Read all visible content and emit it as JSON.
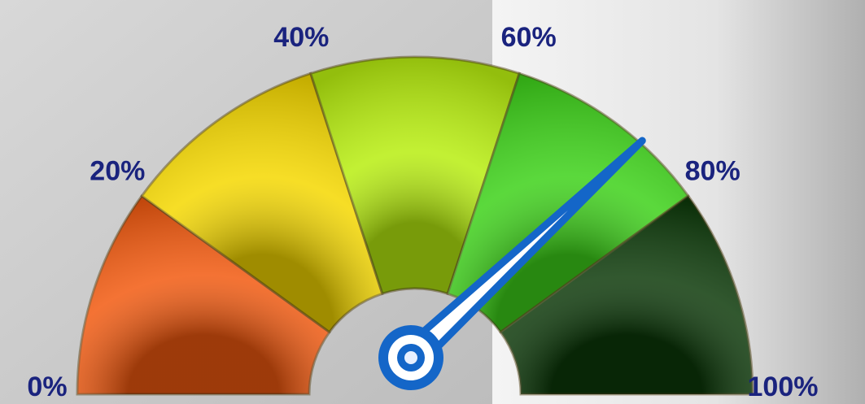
{
  "chart_data": {
    "type": "gauge",
    "value": 76,
    "ticks": [
      {
        "value": 0,
        "label": "0%"
      },
      {
        "value": 20,
        "label": "20%"
      },
      {
        "value": 40,
        "label": "40%"
      },
      {
        "value": 60,
        "label": "60%"
      },
      {
        "value": 80,
        "label": "80%"
      },
      {
        "value": 100,
        "label": "100%"
      }
    ],
    "range": [
      0,
      100
    ],
    "colors": [
      "#f25a10",
      "#f5d800",
      "#b8ee10",
      "#3ed21a",
      "#0d3a0a"
    ],
    "needle_color": "#1466c8"
  }
}
